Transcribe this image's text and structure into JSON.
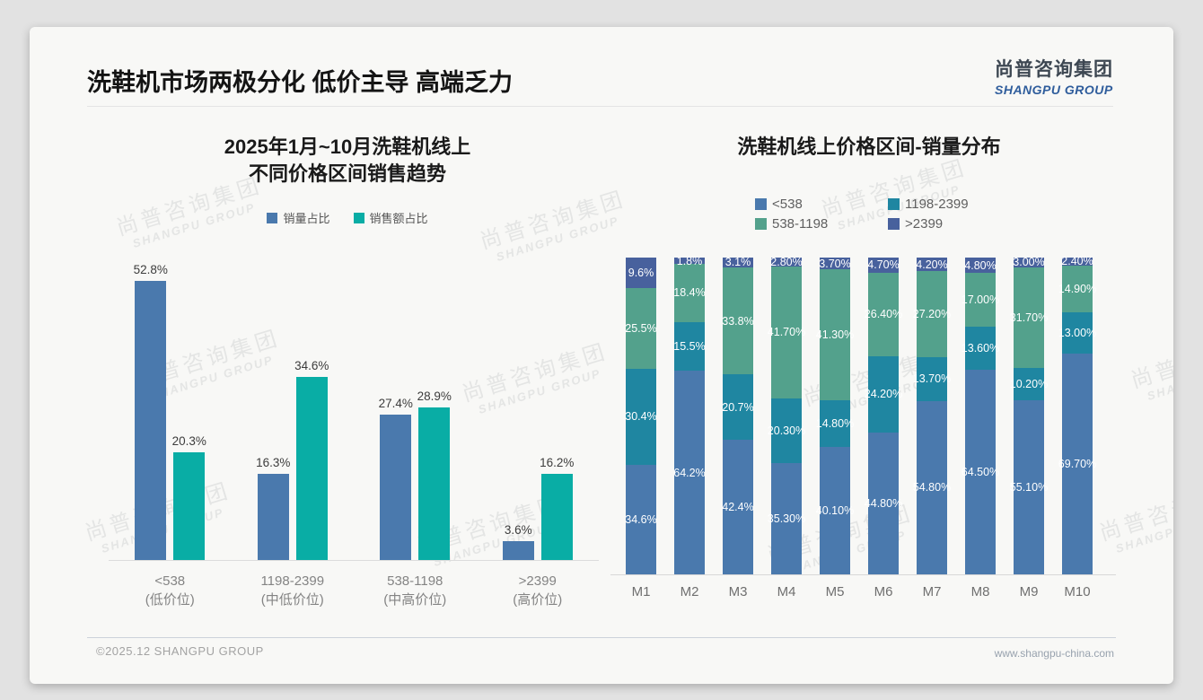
{
  "slide": {
    "title": "洗鞋机市场两极分化 低价主导 高端乏力",
    "logo": {
      "cn": "尚普咨询集团",
      "en": "SHANGPU GROUP"
    },
    "watermark": {
      "cn": "尚普咨询集团",
      "en": "SHANGPU GROUP"
    },
    "footer": {
      "left": "©2025.12 SHANGPU GROUP",
      "right": "www.shangpu-china.com"
    }
  },
  "colors": {
    "steel_blue": "#4a79ad",
    "bright_teal": "#09ada5",
    "teal_blue": "#1f86a1",
    "sea_green": "#53a18c",
    "slate_blue": "#48619d"
  },
  "chart_data": [
    {
      "type": "bar",
      "title_lines": [
        "2025年1月~10月洗鞋机线上",
        "不同价格区间销售趋势"
      ],
      "categories": [
        "<538",
        "1198-2399",
        "538-1198",
        ">2399"
      ],
      "category_sublabels": [
        "(低价位)",
        "(中低价位)",
        "(中高价位)",
        "(高价位)"
      ],
      "unit": "%",
      "ylim": [
        0,
        55
      ],
      "grid": false,
      "legend_position": "top",
      "series": [
        {
          "name": "销量占比",
          "color": "#4a79ad",
          "values": [
            52.8,
            16.3,
            27.4,
            3.6
          ],
          "labels": [
            "52.8%",
            "16.3%",
            "27.4%",
            "3.6%"
          ]
        },
        {
          "name": "销售额占比",
          "color": "#09ada5",
          "values": [
            20.3,
            34.6,
            28.9,
            16.2
          ],
          "labels": [
            "20.3%",
            "34.6%",
            "28.9%",
            "16.2%"
          ]
        }
      ]
    },
    {
      "type": "bar",
      "subtype": "100%-stacked",
      "title": "洗鞋机线上价格区间-销量分布",
      "categories": [
        "M1",
        "M2",
        "M3",
        "M4",
        "M5",
        "M6",
        "M7",
        "M8",
        "M9",
        "M10"
      ],
      "unit": "%",
      "ylim": [
        0,
        100
      ],
      "grid": false,
      "legend_position": "top",
      "stack_order": "series order, bottom to top",
      "series": [
        {
          "name": "<538",
          "color": "#4a79ad",
          "values": [
            34.6,
            64.2,
            42.4,
            35.3,
            40.1,
            44.8,
            54.8,
            64.5,
            55.1,
            69.7
          ],
          "labels": [
            "34.6%",
            "64.2%",
            "42.4%",
            "35.30%",
            "40.10%",
            "44.80%",
            "54.80%",
            "64.50%",
            "55.10%",
            "69.70%"
          ]
        },
        {
          "name": "1198-2399",
          "color": "#1f86a1",
          "values": [
            30.4,
            15.5,
            20.7,
            20.3,
            14.8,
            24.2,
            13.7,
            13.6,
            10.2,
            13.0
          ],
          "labels": [
            "30.4%",
            "15.5%",
            "20.7%",
            "20.30%",
            "14.80%",
            "24.20%",
            "13.70%",
            "13.60%",
            "10.20%",
            "13.00%"
          ]
        },
        {
          "name": "538-1198",
          "color": "#53a18c",
          "values": [
            25.5,
            18.4,
            33.8,
            41.7,
            41.3,
            26.4,
            27.2,
            17.0,
            31.7,
            14.9
          ],
          "labels": [
            "25.5%",
            "18.4%",
            "33.8%",
            "41.70%",
            "41.30%",
            "26.40%",
            "27.20%",
            "17.00%",
            "31.70%",
            "14.90%"
          ]
        },
        {
          "name": ">2399",
          "color": "#48619d",
          "values": [
            9.6,
            1.8,
            3.1,
            2.8,
            3.7,
            4.7,
            4.2,
            4.8,
            3.0,
            2.4
          ],
          "labels": [
            "9.6%",
            "1.8%",
            "3.1%",
            "2.80%",
            "3.70%",
            "4.70%",
            "4.20%",
            "4.80%",
            "3.00%",
            "2.40%"
          ]
        }
      ]
    }
  ]
}
